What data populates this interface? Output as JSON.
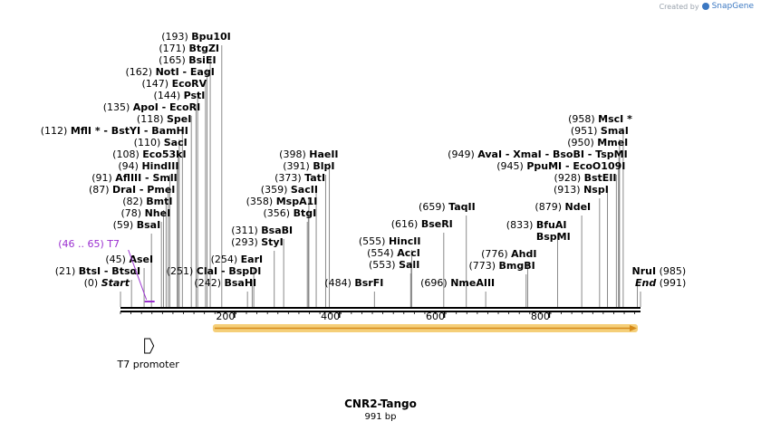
{
  "brand": {
    "prefix": "Created by",
    "name": "SnapGene"
  },
  "sequence": {
    "name": "CNR2-Tango",
    "length_label": "991 bp",
    "length": 991
  },
  "colors": {
    "primer": "#9b30d0",
    "feature_fill": "#f5cf79",
    "feature_arrow": "#d58a1a",
    "line": "#000000"
  },
  "ruler": {
    "ticks": [
      200,
      400,
      600,
      800
    ]
  },
  "sites": [
    {
      "coord": "(0)",
      "name": "Start",
      "italic": true,
      "pos": 0
    },
    {
      "coord": "(21)",
      "name": "BtsI  - BtsαI",
      "pos": 21
    },
    {
      "coord": "(45)",
      "name": "AseI",
      "pos": 45
    },
    {
      "coord": "(59)",
      "name": "BsaI",
      "pos": 59
    },
    {
      "coord": "(78)",
      "name": "NheI",
      "pos": 78
    },
    {
      "coord": "(82)",
      "name": "BmtI",
      "pos": 82
    },
    {
      "coord": "(87)",
      "name": "DraI  - PmeI",
      "pos": 87
    },
    {
      "coord": "(91)",
      "name": "AflIII  - SmlI",
      "pos": 91
    },
    {
      "coord": "(94)",
      "name": "HindIII",
      "pos": 94
    },
    {
      "coord": "(108)",
      "name": "Eco53kI",
      "pos": 108
    },
    {
      "coord": "(110)",
      "name": "SacI",
      "pos": 110
    },
    {
      "coord": "(112)",
      "name": "MflI *  - BstYI  - BamHI",
      "pos": 112
    },
    {
      "coord": "(118)",
      "name": "SpeI",
      "pos": 118
    },
    {
      "coord": "(135)",
      "name": "ApoI  - EcoRI",
      "pos": 135
    },
    {
      "coord": "(144)",
      "name": "PstI",
      "pos": 144
    },
    {
      "coord": "(147)",
      "name": "EcoRV",
      "pos": 147
    },
    {
      "coord": "(162)",
      "name": "NotI  - EagI",
      "pos": 162
    },
    {
      "coord": "(165)",
      "name": "BsiEI",
      "pos": 165
    },
    {
      "coord": "(171)",
      "name": "BtgZI",
      "pos": 171
    },
    {
      "coord": "(193)",
      "name": "Bpu10I",
      "pos": 193
    },
    {
      "coord": "(242)",
      "name": "BsaHI",
      "pos": 242
    },
    {
      "coord": "(251)",
      "name": "ClaI  - BspDI",
      "pos": 251
    },
    {
      "coord": "(254)",
      "name": "EarI",
      "pos": 254
    },
    {
      "coord": "(293)",
      "name": "StyI",
      "pos": 293
    },
    {
      "coord": "(311)",
      "name": "BsaBI",
      "pos": 311
    },
    {
      "coord": "(356)",
      "name": "BtgI",
      "pos": 356
    },
    {
      "coord": "(358)",
      "name": "MspA1I",
      "pos": 358
    },
    {
      "coord": "(359)",
      "name": "SacII",
      "pos": 359
    },
    {
      "coord": "(373)",
      "name": "TatI",
      "pos": 373
    },
    {
      "coord": "(391)",
      "name": "BlpI",
      "pos": 391
    },
    {
      "coord": "(398)",
      "name": "HaeII",
      "pos": 398
    },
    {
      "coord": "(484)",
      "name": "BsrFI",
      "pos": 484
    },
    {
      "coord": "(553)",
      "name": "SalI",
      "pos": 553
    },
    {
      "coord": "(554)",
      "name": "AccI",
      "pos": 554
    },
    {
      "coord": "(555)",
      "name": "HincII",
      "pos": 555
    },
    {
      "coord": "(616)",
      "name": "BseRI",
      "pos": 616
    },
    {
      "coord": "(659)",
      "name": "TaqII",
      "pos": 659
    },
    {
      "coord": "(696)",
      "name": "NmeAIII",
      "pos": 696
    },
    {
      "coord": "(773)",
      "name": "BmgBI",
      "pos": 773
    },
    {
      "coord": "(776)",
      "name": "AhdI",
      "pos": 776
    },
    {
      "coord": "(833)",
      "name": "BfuAI\nBspMI",
      "pos": 833
    },
    {
      "coord": "(879)",
      "name": "NdeI",
      "pos": 879
    },
    {
      "coord": "(913)",
      "name": "NspI",
      "pos": 913
    },
    {
      "coord": "(928)",
      "name": "BstEII",
      "pos": 928
    },
    {
      "coord": "(945)",
      "name": "PpuMI  - EcoO109I",
      "pos": 945
    },
    {
      "coord": "(949)",
      "name": "AvaI  - XmaI  - BsoBI  - TspMI",
      "pos": 949
    },
    {
      "coord": "(950)",
      "name": "MmeI",
      "pos": 950
    },
    {
      "coord": "(951)",
      "name": "SmaI",
      "pos": 951
    },
    {
      "coord": "(958)",
      "name": "MscI *",
      "pos": 958
    },
    {
      "coord": "(985)",
      "name": "NruI",
      "pos": 985
    },
    {
      "coord": "(991)",
      "name": "End",
      "italic": true,
      "pos": 991
    }
  ],
  "primer": {
    "label": "(46 .. 65)  T7",
    "start": 46,
    "end": 65
  },
  "promoter": {
    "label": "T7 promoter",
    "pos": 46
  },
  "feature": {
    "start": 176,
    "end": 991
  }
}
